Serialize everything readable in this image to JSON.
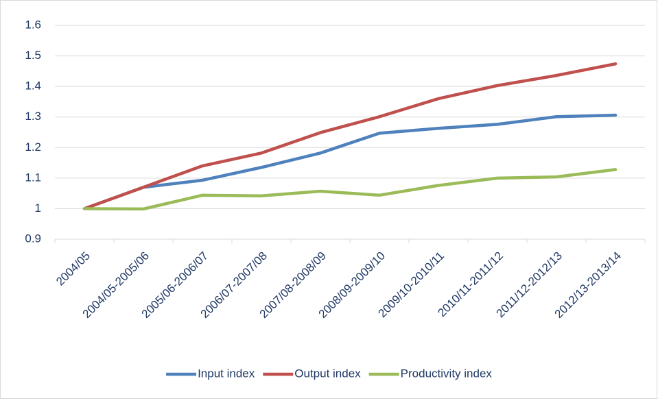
{
  "chart_data": {
    "type": "line",
    "categories": [
      "2004/05",
      "2004/05-2005/06",
      "2005/06-2006/07",
      "2006/07-2007/08",
      "2007/08-2008/09",
      "2008/09-2009/10",
      "2009/10-2010/11",
      "2010/11-2011/12",
      "2011/12-2012/13",
      "2012/13-2013/14"
    ],
    "series": [
      {
        "name": "Input index",
        "color": "#4f81bd",
        "values": [
          1,
          1.07,
          1.093,
          1.135,
          1.182,
          1.247,
          1.263,
          1.276,
          1.301,
          1.306
        ]
      },
      {
        "name": "Output index",
        "color": "#c0504d",
        "values": [
          1,
          1.07,
          1.14,
          1.182,
          1.249,
          1.301,
          1.36,
          1.403,
          1.436,
          1.474
        ]
      },
      {
        "name": "Productivity index",
        "color": "#9bbb59",
        "values": [
          1,
          0.999,
          1.044,
          1.042,
          1.057,
          1.044,
          1.076,
          1.1,
          1.104,
          1.128
        ]
      }
    ],
    "ylim": [
      0.9,
      1.6
    ],
    "yticks": [
      0.9,
      1,
      1.1,
      1.2,
      1.3,
      1.4,
      1.5,
      1.6
    ],
    "grid": true,
    "legend": "bottom"
  }
}
